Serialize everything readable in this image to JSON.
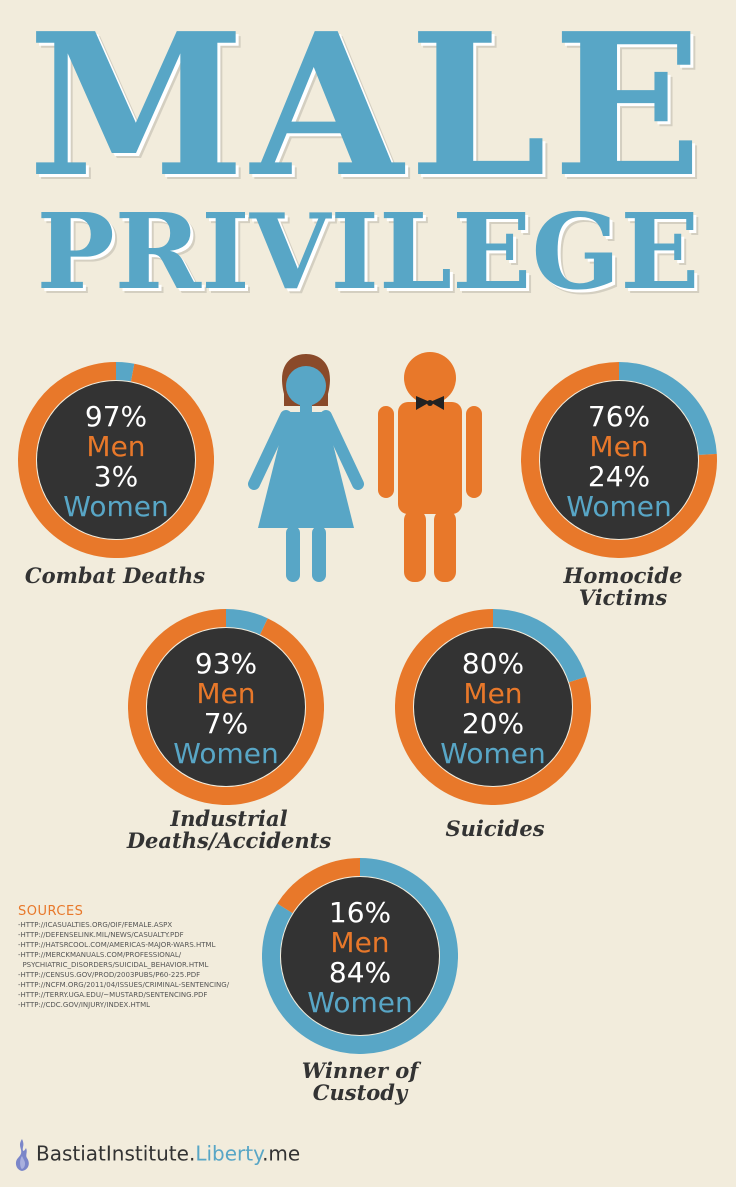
{
  "title": {
    "line1": "MALE",
    "line2": "PRIVILEGE"
  },
  "colors": {
    "men": "#e8782a",
    "women": "#58a6c6",
    "dark": "#333333",
    "background": "#f2ecdc"
  },
  "chart_data": [
    {
      "type": "pie",
      "caption": "Combat Deaths",
      "men_pct": "97%",
      "men_label": "Men",
      "women_pct": "3%",
      "women_label": "Women",
      "values": [
        97,
        3
      ]
    },
    {
      "type": "pie",
      "caption": "Homocide Victims",
      "men_pct": "76%",
      "men_label": "Men",
      "women_pct": "24%",
      "women_label": "Women",
      "values": [
        76,
        24
      ]
    },
    {
      "type": "pie",
      "caption_line1": "Industrial",
      "caption_line2": "Deaths/Accidents",
      "men_pct": "93%",
      "men_label": "Men",
      "women_pct": "7%",
      "women_label": "Women",
      "values": [
        93,
        7
      ]
    },
    {
      "type": "pie",
      "caption": "Suicides",
      "men_pct": "80%",
      "men_label": "Men",
      "women_pct": "20%",
      "women_label": "Women",
      "values": [
        80,
        20
      ]
    },
    {
      "type": "pie",
      "caption_line1": "Winner of",
      "caption_line2": "Custody",
      "men_pct": "16%",
      "men_label": "Men",
      "women_pct": "84%",
      "women_label": "Women",
      "values": [
        16,
        84
      ]
    }
  ],
  "sources": {
    "heading": "SOURCES",
    "items": [
      "-HTTP://ICASUALTIES.ORG/OIF/FEMALE.ASPX",
      "-HTTP://DEFENSELINK.MIL/NEWS/CASUALTY.PDF",
      "-HTTP://HATSRCOOL.COM/AMERICAS-MAJOR-WARS.HTML",
      "-HTTP://MERCKMANUALS.COM/PROFESSIONAL/",
      "  PSYCHIATRIC_DISORDERS/SUICIDAL_BEHAVIOR.HTML",
      "-HTTP://CENSUS.GOV/PROD/2003PUBS/P60-225.PDF",
      "-HTTP://NCFM.ORG/2011/04/ISSUES/CRIMINAL-SENTENCING/",
      "-HTTP://TERRY.UGA.EDU/~MUSTARD/SENTENCING.PDF",
      "-HTTP://CDC.GOV/INJURY/INDEX.HTML"
    ]
  },
  "footer": {
    "part1": "BastiatInstitute.",
    "part2": "Liberty",
    "part3": ".me"
  }
}
